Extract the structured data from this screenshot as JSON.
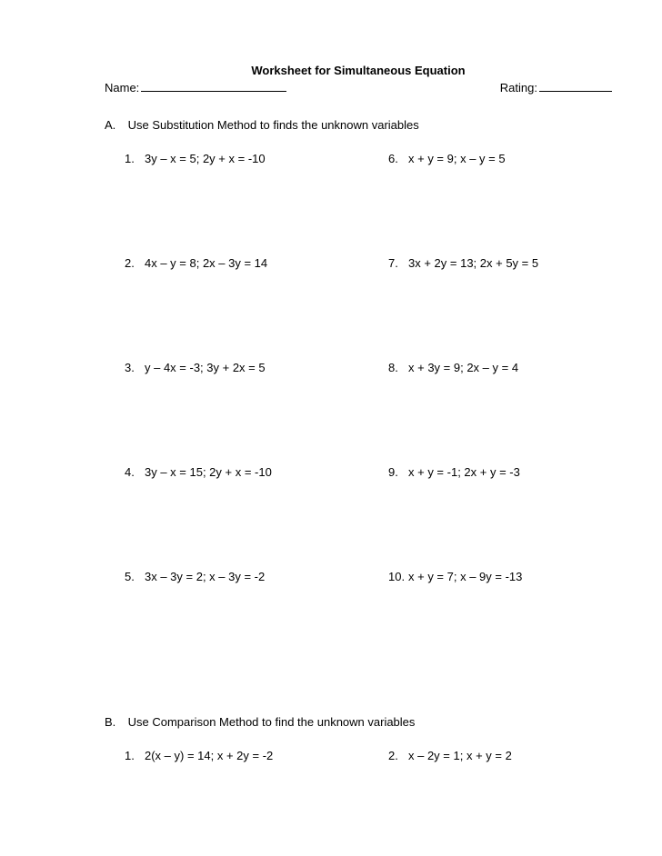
{
  "title": "Worksheet for Simultaneous Equation",
  "header": {
    "name_label": "Name:",
    "rating_label": "Rating:"
  },
  "sectionA": {
    "letter": "A.",
    "instruction": "Use Substitution Method to finds the unknown variables",
    "problems": [
      {
        "left_num": "1.",
        "left_text": "3y – x = 5; 2y + x = -10",
        "right_num": "6.",
        "right_text": "x + y = 9; x – y = 5"
      },
      {
        "left_num": "2.",
        "left_text": "4x – y = 8; 2x – 3y = 14",
        "right_num": "7.",
        "right_text": "3x + 2y = 13; 2x + 5y = 5"
      },
      {
        "left_num": "3.",
        "left_text": "y – 4x = -3; 3y + 2x = 5",
        "right_num": "8.",
        "right_text": "x + 3y = 9; 2x – y = 4"
      },
      {
        "left_num": "4.",
        "left_text": "3y – x = 15; 2y + x = -10",
        "right_num": "9.",
        "right_text": "x + y = -1; 2x + y = -3"
      },
      {
        "left_num": "5.",
        "left_text": "3x – 3y = 2; x – 3y = -2",
        "right_num": "10.",
        "right_text": "x + y = 7; x – 9y = -13"
      }
    ]
  },
  "sectionB": {
    "letter": "B.",
    "instruction": "Use Comparison Method to find the unknown variables",
    "problems": [
      {
        "left_num": "1.",
        "left_text": "2(x – y) = 14; x + 2y = -2",
        "right_num": "2.",
        "right_text": "x – 2y = 1; x + y = 2"
      }
    ]
  }
}
